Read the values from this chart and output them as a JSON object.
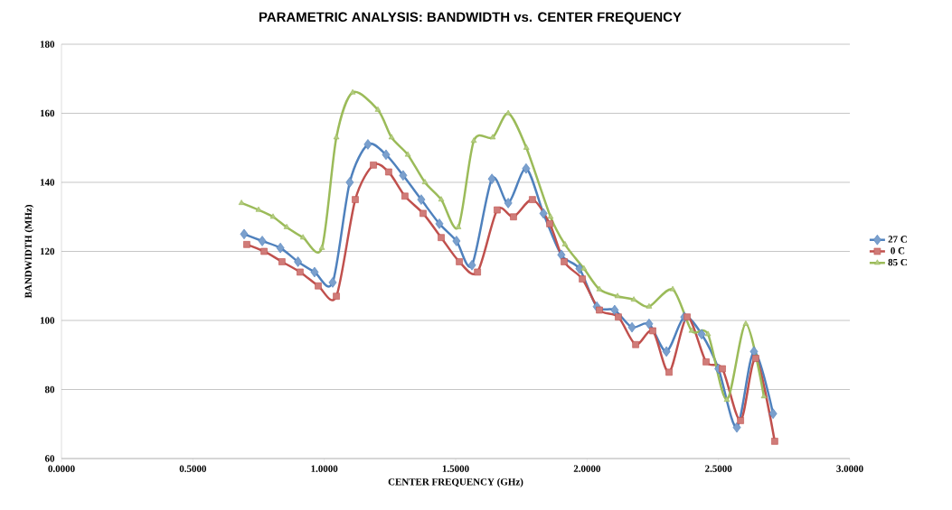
{
  "chart_data": {
    "type": "line",
    "title": "PARAMETRIC ANALYSIS: BANDWIDTH vs. CENTER FREQUENCY",
    "xlabel": "CENTER FREQUENCY (GHz)",
    "ylabel": "BANDWIDTH (MHz)",
    "xlim": [
      0,
      3
    ],
    "ylim": [
      60,
      180
    ],
    "xticks": [
      {
        "value": 0,
        "label": "0.0000"
      },
      {
        "value": 0.5,
        "label": "0.5000"
      },
      {
        "value": 1,
        "label": "1.0000"
      },
      {
        "value": 1.5,
        "label": "1.5000"
      },
      {
        "value": 2,
        "label": "2.0000"
      },
      {
        "value": 2.5,
        "label": "2.5000"
      },
      {
        "value": 3,
        "label": "3.0000"
      }
    ],
    "yticks": [
      60,
      80,
      100,
      120,
      140,
      160,
      180
    ],
    "grid": "y",
    "legend": "right",
    "series": [
      {
        "name": "27 C",
        "color": "#4f81bd",
        "marker": "diamond",
        "x": [
          0.695,
          0.764,
          0.833,
          0.9,
          0.963,
          1.032,
          1.097,
          1.166,
          1.235,
          1.3,
          1.369,
          1.438,
          1.503,
          1.562,
          1.638,
          1.7,
          1.768,
          1.834,
          1.902,
          1.971,
          2.037,
          2.105,
          2.171,
          2.236,
          2.302,
          2.37,
          2.436,
          2.5,
          2.57,
          2.635,
          2.708
        ],
        "values": [
          125,
          123,
          121,
          117,
          114,
          111,
          140,
          151,
          148,
          142,
          135,
          128,
          123,
          116,
          141,
          134,
          144,
          131,
          119,
          115,
          104,
          103,
          98,
          99,
          91,
          101,
          96,
          86,
          69,
          91,
          73
        ]
      },
      {
        "name": "0 C",
        "color": "#c0504d",
        "marker": "square",
        "x": [
          0.705,
          0.771,
          0.839,
          0.908,
          0.977,
          1.046,
          1.118,
          1.187,
          1.245,
          1.307,
          1.376,
          1.445,
          1.514,
          1.583,
          1.658,
          1.72,
          1.792,
          1.858,
          1.913,
          1.982,
          2.047,
          2.119,
          2.185,
          2.25,
          2.312,
          2.381,
          2.453,
          2.515,
          2.584,
          2.642,
          2.714
        ],
        "values": [
          122,
          120,
          117,
          114,
          110,
          107,
          135,
          145,
          143,
          136,
          131,
          124,
          117,
          114,
          132,
          130,
          135,
          128,
          117,
          112,
          103,
          101,
          93,
          97,
          85,
          101,
          88,
          86,
          71,
          89,
          65
        ]
      },
      {
        "name": "85 C",
        "color": "#9bbb59",
        "marker": "triangle",
        "x": [
          0.685,
          0.75,
          0.805,
          0.857,
          0.919,
          0.991,
          1.046,
          1.108,
          1.204,
          1.256,
          1.318,
          1.383,
          1.445,
          1.51,
          1.569,
          1.641,
          1.7,
          1.769,
          1.861,
          1.916,
          1.988,
          2.047,
          2.116,
          2.178,
          2.236,
          2.326,
          2.398,
          2.46,
          2.532,
          2.604,
          2.673
        ],
        "values": [
          134,
          132,
          130,
          127,
          124,
          121,
          153,
          166,
          161,
          153,
          148,
          140,
          135,
          127,
          152,
          153,
          160,
          150,
          130,
          122,
          115,
          109,
          107,
          106,
          104,
          109,
          97,
          96,
          77,
          99,
          78
        ]
      }
    ]
  }
}
